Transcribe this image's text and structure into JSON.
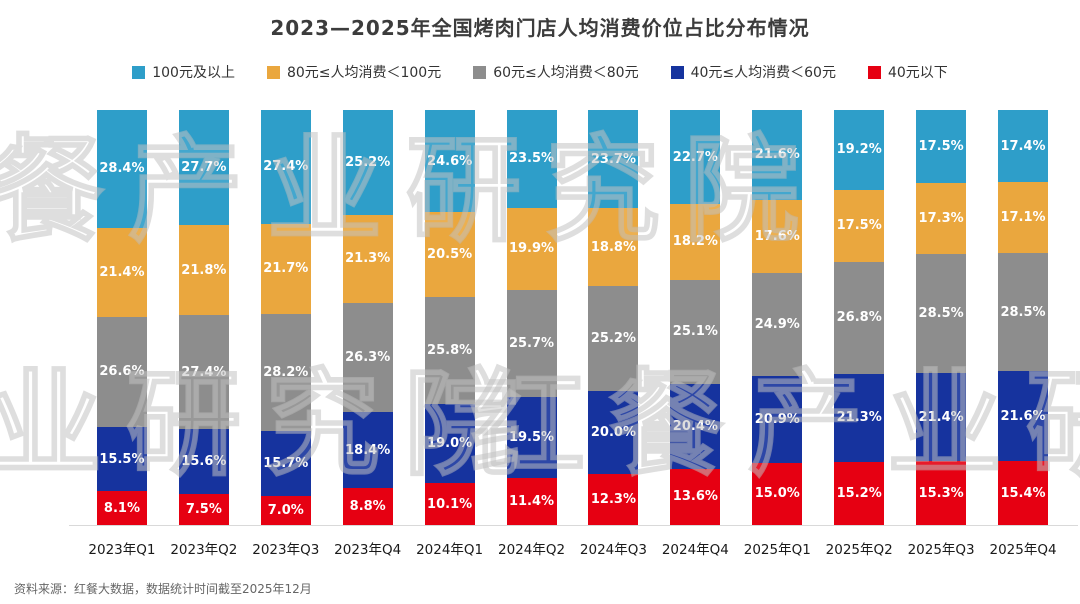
{
  "title": "2023—2025年全国烤肉门店人均消费价位占比分布情况",
  "footer": {
    "source": "资料来源：红餐大数据，数据统计时间截至2025年12月"
  },
  "watermark": {
    "text": "红餐产业研究院"
  },
  "chart_data": {
    "type": "bar",
    "stacked": true,
    "percent": true,
    "title": "2023—2025年全国烤肉门店人均消费价位占比分布情况",
    "xlabel": "",
    "ylabel": "",
    "ylim": [
      0,
      100
    ],
    "grid": false,
    "legend_position": "top",
    "categories": [
      "2023年Q1",
      "2023年Q2",
      "2023年Q3",
      "2023年Q4",
      "2024年Q1",
      "2024年Q2",
      "2024年Q3",
      "2024年Q4",
      "2025年Q1",
      "2025年Q2",
      "2025年Q3",
      "2025年Q4"
    ],
    "series": [
      {
        "name": "100元及以上",
        "color": "#2E9EC9",
        "values": [
          28.4,
          27.7,
          27.4,
          25.2,
          24.6,
          23.5,
          23.7,
          22.7,
          21.6,
          19.2,
          17.5,
          17.4
        ]
      },
      {
        "name": "80元≤人均消费＜100元",
        "color": "#EAA73E",
        "values": [
          21.4,
          21.8,
          21.7,
          21.3,
          20.5,
          19.9,
          18.8,
          18.2,
          17.6,
          17.5,
          17.3,
          17.1
        ]
      },
      {
        "name": "60元≤人均消费＜80元",
        "color": "#8D8D8D",
        "values": [
          26.6,
          27.4,
          28.2,
          26.3,
          25.8,
          25.7,
          25.2,
          25.1,
          24.9,
          26.8,
          28.5,
          28.5
        ]
      },
      {
        "name": "40元≤人均消费＜60元",
        "color": "#16339E",
        "values": [
          15.5,
          15.6,
          15.7,
          18.4,
          19.0,
          19.5,
          20.0,
          20.4,
          20.9,
          21.3,
          21.4,
          21.6
        ]
      },
      {
        "name": "40元以下",
        "color": "#E60012",
        "values": [
          8.1,
          7.5,
          7.0,
          8.8,
          10.1,
          11.4,
          12.3,
          13.6,
          15.0,
          15.2,
          15.3,
          15.4
        ]
      }
    ]
  }
}
